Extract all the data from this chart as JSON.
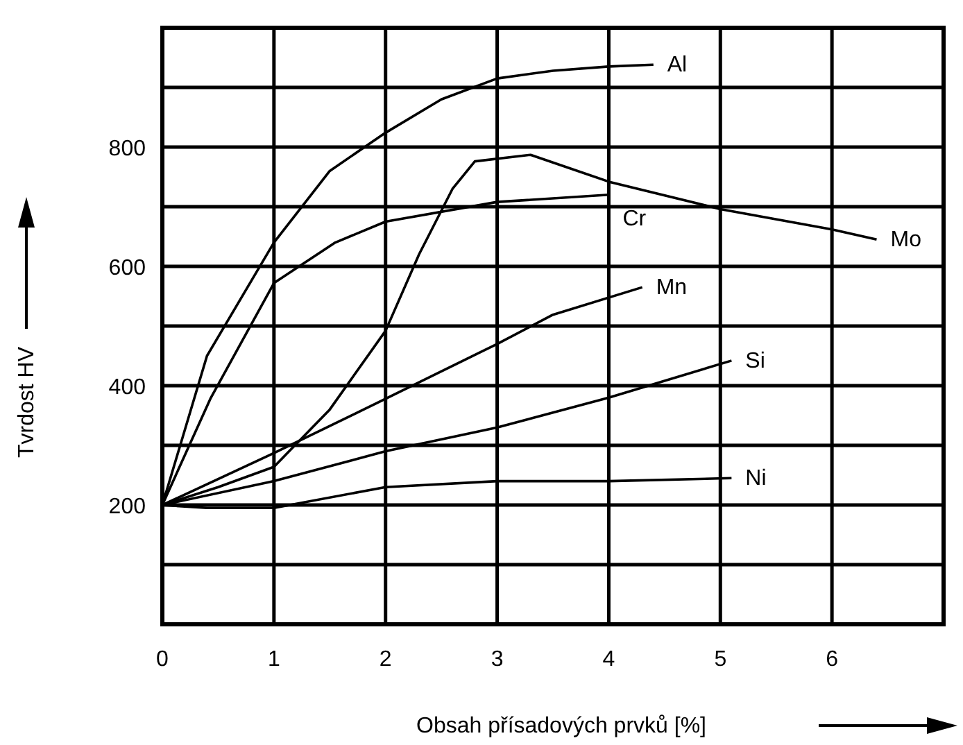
{
  "chart_data": {
    "type": "line",
    "xlabel": "Obsah přísadových prvků [%]",
    "ylabel": "Tvrdost HV",
    "xlim": [
      0,
      7
    ],
    "xticks": [
      0,
      1,
      2,
      3,
      4,
      5,
      6
    ],
    "ylim": [
      0,
      1000
    ],
    "yticks": [
      {
        "value": 100,
        "label": null
      },
      200,
      {
        "value": 300,
        "label": null
      },
      400,
      {
        "value": 500,
        "label": null
      },
      600,
      {
        "value": 700,
        "label": null
      },
      800,
      {
        "value": 900,
        "label": null
      }
    ],
    "grid": true,
    "marker": "none",
    "line_style": "solid",
    "series": [
      {
        "name": "Al",
        "color": "#000000",
        "x": [
          0,
          0.4,
          1,
          1.5,
          2,
          2.5,
          3,
          3.5,
          4,
          4.4
        ],
        "values": [
          200,
          450,
          640,
          760,
          824,
          880,
          915,
          928,
          935,
          938
        ]
      },
      {
        "name": "Mo",
        "color": "#000000",
        "x": [
          0,
          0.5,
          1,
          1.5,
          2,
          2.3,
          2.6,
          2.8,
          3.3,
          4,
          5,
          6,
          6.4
        ],
        "values": [
          200,
          230,
          264,
          360,
          492,
          620,
          730,
          776,
          787,
          742,
          696,
          662,
          645
        ]
      },
      {
        "name": "Cr",
        "color": "#000000",
        "x": [
          0,
          0.43,
          1,
          1.55,
          2,
          3,
          4
        ],
        "values": [
          200,
          378,
          572,
          640,
          675,
          708,
          720
        ]
      },
      {
        "name": "Mn",
        "color": "#000000",
        "x": [
          0,
          1,
          2,
          3,
          3.5,
          4.3
        ],
        "values": [
          200,
          287,
          378,
          470,
          519,
          565
        ]
      },
      {
        "name": "Si",
        "color": "#000000",
        "x": [
          0,
          1,
          2,
          3,
          4,
          5.1
        ],
        "values": [
          200,
          240,
          290,
          330,
          380,
          442
        ]
      },
      {
        "name": "Ni",
        "color": "#000000",
        "x": [
          0,
          0.4,
          1,
          2,
          3,
          4,
          5.1
        ],
        "values": [
          200,
          195,
          195,
          230,
          240,
          240,
          245
        ]
      }
    ]
  }
}
